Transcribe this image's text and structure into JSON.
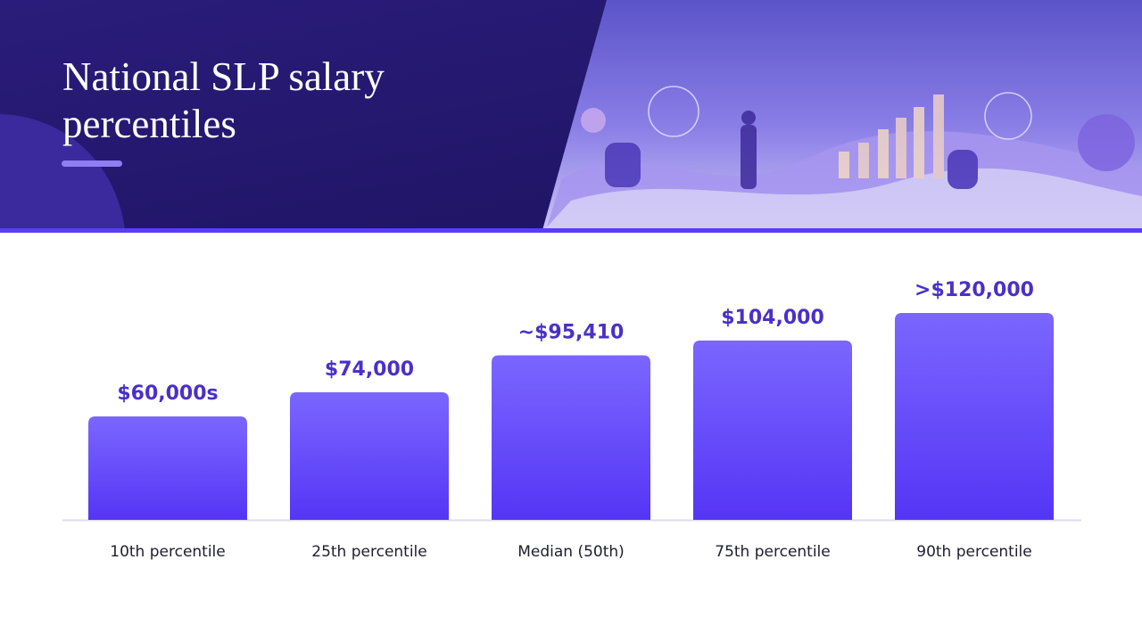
{
  "chart_data": {
    "type": "bar",
    "title": "National SLP salary percentiles",
    "categories": [
      "10th percentile",
      "25th percentile",
      "Median (50th)",
      "75th percentile",
      "90th percentile"
    ],
    "values": [
      60000,
      74000,
      95410,
      104000,
      120000
    ],
    "value_labels": [
      "$60,000s",
      "$74,000",
      "~$95,410",
      "$104,000",
      ">$120,000"
    ],
    "color": "#5b3cf5"
  }
}
